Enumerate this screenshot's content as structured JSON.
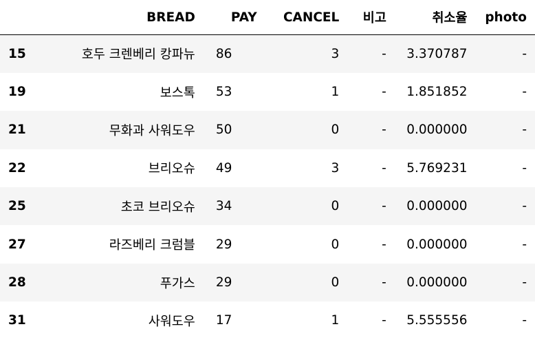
{
  "columns": {
    "index": "",
    "bread": "BREAD",
    "pay": "PAY",
    "cancel": "CANCEL",
    "note": "비고",
    "rate": "취소율",
    "photo": "photo"
  },
  "rows": [
    {
      "index": "15",
      "bread": "호두 크렌베리 캉파뉴",
      "pay": "86",
      "cancel": "3",
      "note": "-",
      "rate": "3.370787",
      "photo": "-"
    },
    {
      "index": "19",
      "bread": "보스톡",
      "pay": "53",
      "cancel": "1",
      "note": "-",
      "rate": "1.851852",
      "photo": "-"
    },
    {
      "index": "21",
      "bread": "무화과 사워도우",
      "pay": "50",
      "cancel": "0",
      "note": "-",
      "rate": "0.000000",
      "photo": "-"
    },
    {
      "index": "22",
      "bread": "브리오슈",
      "pay": "49",
      "cancel": "3",
      "note": "-",
      "rate": "5.769231",
      "photo": "-"
    },
    {
      "index": "25",
      "bread": "초코 브리오슈",
      "pay": "34",
      "cancel": "0",
      "note": "-",
      "rate": "0.000000",
      "photo": "-"
    },
    {
      "index": "27",
      "bread": "라즈베리 크럼블",
      "pay": "29",
      "cancel": "0",
      "note": "-",
      "rate": "0.000000",
      "photo": "-"
    },
    {
      "index": "28",
      "bread": "푸가스",
      "pay": "29",
      "cancel": "0",
      "note": "-",
      "rate": "0.000000",
      "photo": "-"
    },
    {
      "index": "31",
      "bread": "사워도우",
      "pay": "17",
      "cancel": "1",
      "note": "-",
      "rate": "5.555556",
      "photo": "-"
    }
  ]
}
